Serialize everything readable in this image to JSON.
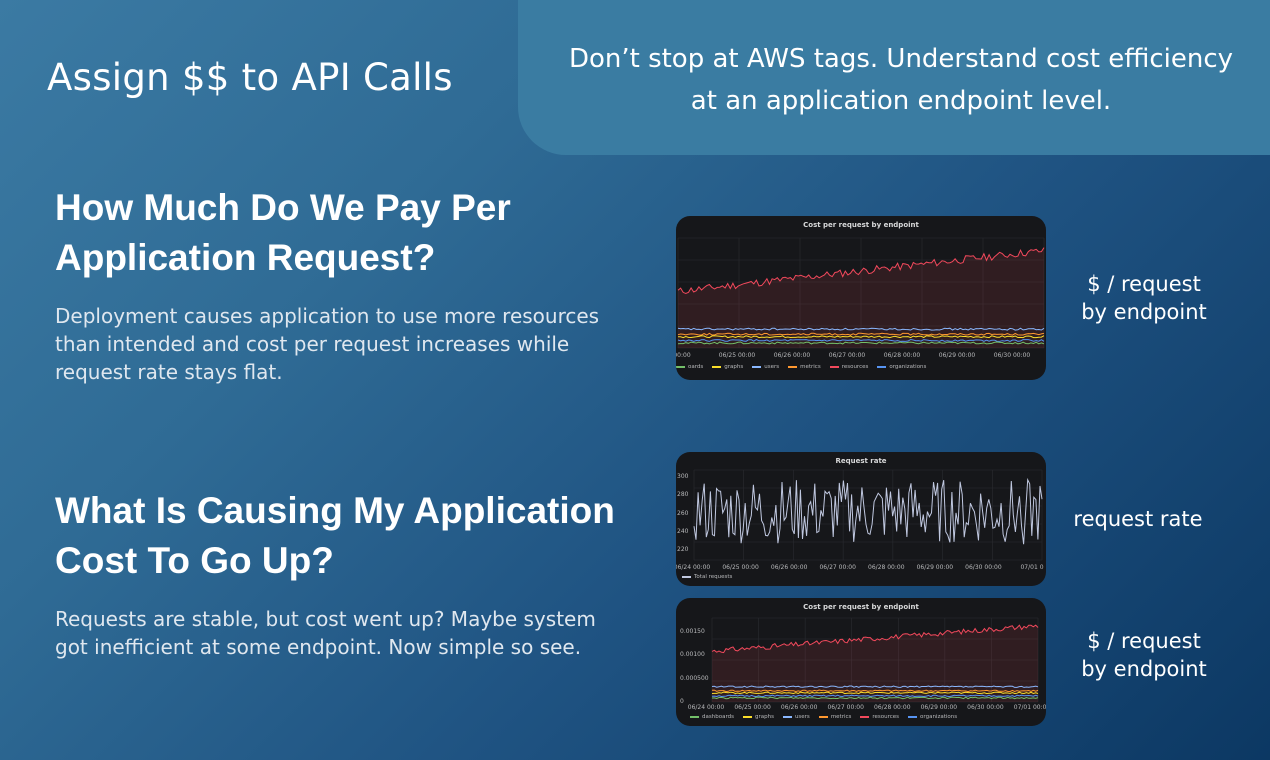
{
  "header": {
    "title": "Assign $$ to API Calls",
    "tagline": "Don’t stop at AWS tags. Understand cost efficiency at an application endpoint level."
  },
  "sections": [
    {
      "heading": "How Much Do We Pay Per Application Request?",
      "body": "Deployment causes application to use more resources than intended and cost per request increases while request rate stays flat."
    },
    {
      "heading": "What Is Causing My Application Cost To Go Up?",
      "body": "Requests are stable, but cost went up? Maybe system got inefficient at some endpoint. Now simple so see."
    }
  ],
  "side_labels": {
    "panel1": "$ / request\nby endpoint",
    "panel2": "request rate",
    "panel3": "$ / request\nby endpoint"
  },
  "colors": {
    "dashboards": "#73bf69",
    "graphs": "#fade2a",
    "users": "#8ab8ff",
    "metrics": "#ff9830",
    "resources": "#f2495c",
    "organizations": "#5794f2",
    "total_requests": "#c0c8e0"
  },
  "panels": {
    "cost1": {
      "title": "Cost per request by endpoint",
      "x_ticks": [
        "00:00",
        "06/25 00:00",
        "06/26 00:00",
        "06/27 00:00",
        "06/28 00:00",
        "06/29 00:00",
        "06/30 00:00"
      ],
      "legend": [
        "oards",
        "graphs",
        "users",
        "metrics",
        "resources",
        "organizations"
      ]
    },
    "rate": {
      "title": "Request rate",
      "x_ticks": [
        "06/24 00:00",
        "06/25 00:00",
        "06/26 00:00",
        "06/27 00:00",
        "06/28 00:00",
        "06/29 00:00",
        "06/30 00:00",
        "07/01 0"
      ],
      "y_ticks": [
        "300",
        "280",
        "260",
        "240",
        "220"
      ],
      "legend": [
        "Total requests"
      ]
    },
    "cost2": {
      "title": "Cost per request by endpoint",
      "x_ticks": [
        "06/24 00:00",
        "06/25 00:00",
        "06/26 00:00",
        "06/27 00:00",
        "06/28 00:00",
        "06/29 00:00",
        "06/30 00:00",
        "07/01 00:00"
      ],
      "y_ticks": [
        "0.00150",
        "0.00100",
        "0.000500",
        "0"
      ],
      "legend": [
        "dashboards",
        "graphs",
        "users",
        "metrics",
        "resources",
        "organizations"
      ]
    }
  },
  "chart_data": [
    {
      "type": "line",
      "title": "Cost per request by endpoint",
      "x": [
        "06/25 00:00",
        "06/26 00:00",
        "06/27 00:00",
        "06/28 00:00",
        "06/29 00:00",
        "06/30 00:00"
      ],
      "series": [
        {
          "name": "resources",
          "trend": [
            0.0009,
            0.00155
          ]
        },
        {
          "name": "users",
          "trend": [
            0.0003,
            0.0003
          ]
        },
        {
          "name": "metrics",
          "trend": [
            0.00022,
            0.00022
          ]
        },
        {
          "name": "graphs",
          "trend": [
            0.00018,
            0.00018
          ]
        },
        {
          "name": "organizations",
          "trend": [
            0.00012,
            0.00012
          ]
        },
        {
          "name": "dashboards",
          "trend": [
            8e-05,
            8e-05
          ]
        }
      ]
    },
    {
      "type": "line",
      "title": "Request rate",
      "x": [
        "06/24 00:00",
        "06/25 00:00",
        "06/26 00:00",
        "06/27 00:00",
        "06/28 00:00",
        "06/29 00:00",
        "06/30 00:00",
        "07/01 0"
      ],
      "ylim": [
        210,
        300
      ],
      "series": [
        {
          "name": "Total requests",
          "range": [
            225,
            290
          ],
          "mean": 258
        }
      ]
    },
    {
      "type": "line",
      "title": "Cost per request by endpoint",
      "x": [
        "06/24 00:00",
        "06/25 00:00",
        "06/26 00:00",
        "06/27 00:00",
        "06/28 00:00",
        "06/29 00:00",
        "06/30 00:00",
        "07/01 00:00"
      ],
      "ylim": [
        0,
        0.00165
      ],
      "series": [
        {
          "name": "resources",
          "trend": [
            0.001,
            0.0015
          ]
        },
        {
          "name": "users",
          "trend": [
            0.0003,
            0.0003
          ]
        },
        {
          "name": "metrics",
          "trend": [
            0.00022,
            0.00022
          ]
        },
        {
          "name": "graphs",
          "trend": [
            0.00018,
            0.00018
          ]
        },
        {
          "name": "organizations",
          "trend": [
            0.00012,
            0.00012
          ]
        },
        {
          "name": "dashboards",
          "trend": [
            8e-05,
            8e-05
          ]
        }
      ]
    }
  ]
}
